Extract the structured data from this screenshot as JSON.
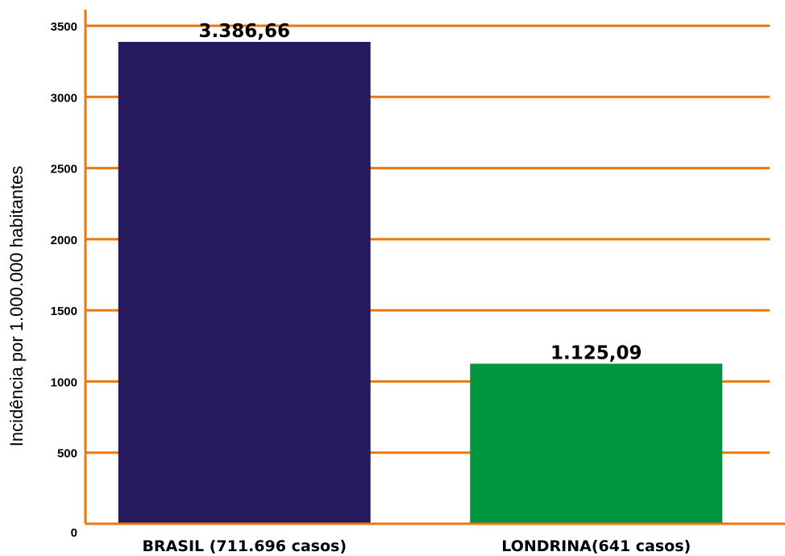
{
  "chart_data": {
    "type": "bar",
    "categories": [
      "BRASIL (711.696 casos)",
      "LONDRINA(641 casos)"
    ],
    "values": [
      3386.66,
      1125.09
    ],
    "data_labels": [
      "3.386,66",
      "1.125,09"
    ],
    "colors": [
      "#261a5e",
      "#009640"
    ],
    "gridline_color": "#e8780f",
    "title": "",
    "xlabel": "",
    "ylabel": "Incidência por 1.000.000 habitantes",
    "ylim": [
      0,
      3500
    ],
    "yticks": [
      "0",
      "500",
      "1000",
      "1500",
      "2000",
      "2500",
      "3000",
      "3500"
    ],
    "grid": true,
    "legend": "none"
  }
}
